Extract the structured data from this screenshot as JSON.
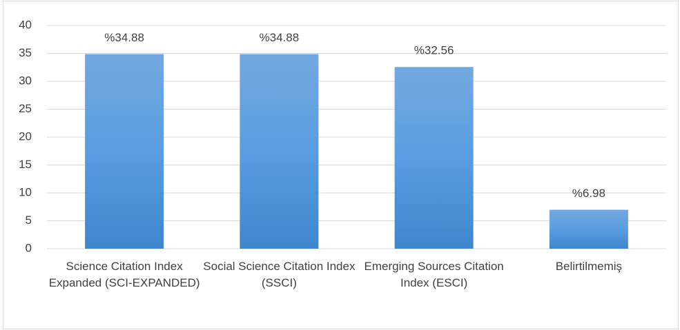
{
  "chart_data": {
    "type": "bar",
    "categories": [
      "Science Citation Index Expanded (SCI-EXPANDED)",
      "Social Science Citation Index (SSCI)",
      "Emerging Sources Citation Index (ESCI)",
      "Belirtilmemiş"
    ],
    "values": [
      34.88,
      34.88,
      32.56,
      6.98
    ],
    "value_labels": [
      "%34.88",
      "%34.88",
      "%32.56",
      "%6.98"
    ],
    "color": "#4a90d9",
    "ylim": [
      0,
      40
    ],
    "yticks": [
      0,
      5,
      10,
      15,
      20,
      25,
      30,
      35,
      40
    ],
    "grid": true
  }
}
